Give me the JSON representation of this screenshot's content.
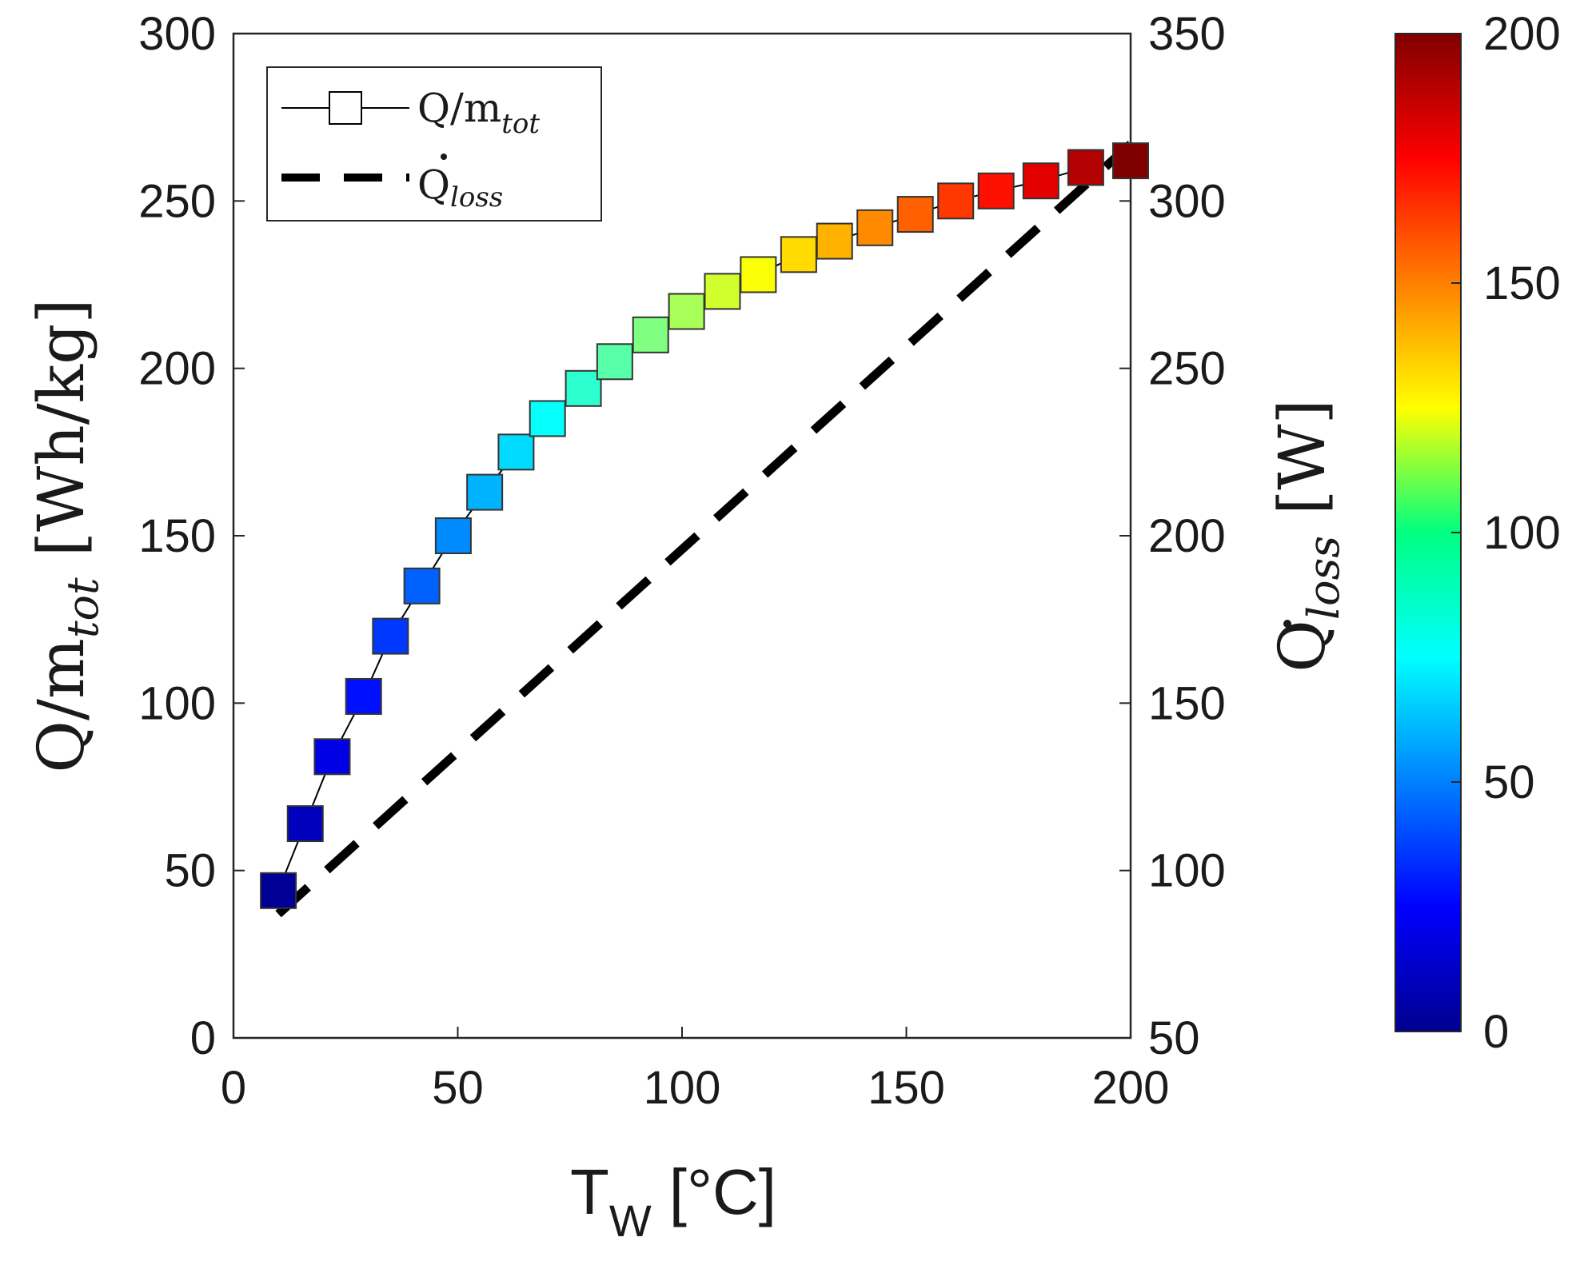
{
  "chart_data": {
    "type": "scatter",
    "xlabel": {
      "main": "T",
      "sub": "W",
      "unit": "[°C]"
    },
    "ylabel_left": {
      "main": "Q/m",
      "sub": "tot",
      "unit": "[Wh/kg]"
    },
    "ylabel_right": {
      "main": "Q",
      "sub": "loss",
      "unit": "[W]"
    },
    "xlim": [
      0,
      200
    ],
    "ylim_left": [
      0,
      300
    ],
    "ylim_right": [
      50,
      350
    ],
    "x_ticks": [
      "0",
      "50",
      "100",
      "150",
      "200"
    ],
    "y_left_ticks": [
      "0",
      "50",
      "100",
      "150",
      "200",
      "250",
      "300"
    ],
    "y_right_ticks": [
      "50",
      "100",
      "150",
      "200",
      "250",
      "300",
      "350"
    ],
    "colorbar": {
      "range": [
        0,
        200
      ],
      "ticks": [
        "0",
        "50",
        "100",
        "150",
        "200"
      ],
      "colormap": "jet"
    },
    "legend": {
      "placement": "top-left",
      "entries": [
        {
          "main": "Q/m",
          "sub": "tot"
        },
        {
          "main": "Q",
          "sub": "loss"
        }
      ]
    },
    "series": [
      {
        "name_ref": "Q/m_tot",
        "axis": "left",
        "style": "line-square-markers",
        "line_color": "#000000",
        "x": [
          10,
          16,
          22,
          29,
          35,
          42,
          49,
          56,
          63,
          70,
          78,
          85,
          93,
          101,
          109,
          117,
          126,
          134,
          143,
          152,
          161,
          170,
          180,
          190,
          200
        ],
        "y": [
          44,
          64,
          84,
          102,
          120,
          135,
          150,
          163,
          175,
          185,
          194,
          202,
          210,
          217,
          223,
          228,
          234,
          238,
          242,
          246,
          250,
          253,
          256,
          260,
          262
        ],
        "color_values": [
          4,
          12,
          20,
          28,
          36,
          44,
          52,
          60,
          68,
          76,
          84,
          92,
          100,
          108,
          116,
          124,
          132,
          140,
          148,
          156,
          164,
          172,
          180,
          190,
          200
        ]
      },
      {
        "name_ref": "Q_loss",
        "axis": "right",
        "style": "dashed",
        "line_color": "#000000",
        "x": [
          10,
          200
        ],
        "y": [
          87,
          317
        ]
      }
    ]
  }
}
